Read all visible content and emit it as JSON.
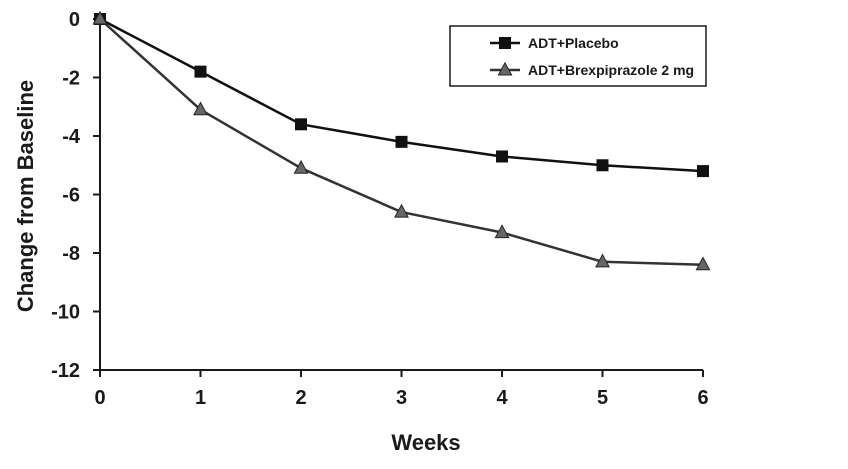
{
  "chart_data": {
    "type": "line",
    "xlabel": "Weeks",
    "ylabel": "Change from Baseline",
    "x": [
      0,
      1,
      2,
      3,
      4,
      5,
      6
    ],
    "xlim": [
      0,
      6
    ],
    "ylim": [
      -12,
      0
    ],
    "xticks": [
      "0",
      "1",
      "2",
      "3",
      "4",
      "5",
      "6"
    ],
    "yticks": [
      "0",
      "-2",
      "-4",
      "-6",
      "-8",
      "-10",
      "-12"
    ],
    "grid": false,
    "legend_position": "top-right",
    "series": [
      {
        "name": "ADT+Placebo",
        "marker": "square",
        "color": "#111111",
        "values": [
          0,
          -1.8,
          -3.6,
          -4.2,
          -4.7,
          -5.0,
          -5.2
        ]
      },
      {
        "name": "ADT+Brexpiprazole 2 mg",
        "marker": "triangle",
        "color": "#333333",
        "markerColor": "#666666",
        "values": [
          0,
          -3.1,
          -5.1,
          -6.6,
          -7.3,
          -8.3,
          -8.4
        ]
      }
    ]
  }
}
